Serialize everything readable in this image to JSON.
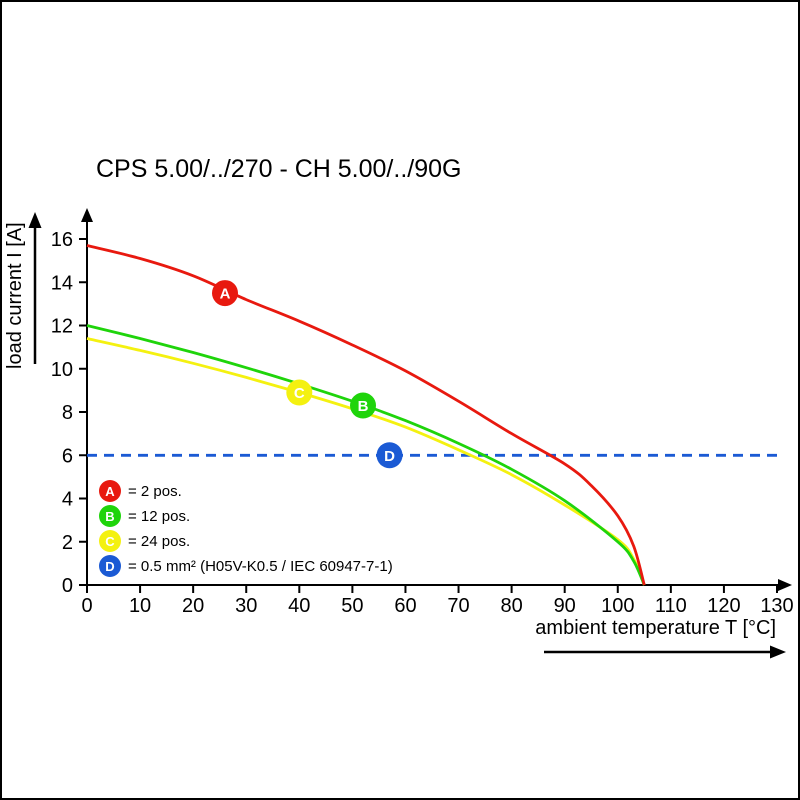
{
  "chart_data": {
    "type": "line",
    "title": "CPS 5.00/../270 - CH 5.00/../90G",
    "xlabel": "ambient temperature T [°C]",
    "ylabel": "load current I [A]",
    "xlim": [
      0,
      130
    ],
    "ylim": [
      0,
      17
    ],
    "xticks": [
      0,
      10,
      20,
      30,
      40,
      50,
      60,
      70,
      80,
      90,
      100,
      110,
      120,
      130
    ],
    "yticks": [
      0,
      2,
      4,
      6,
      8,
      10,
      12,
      14,
      16
    ],
    "grid": false,
    "legend_position": "bottom-left-inside",
    "series": [
      {
        "name": "A",
        "label": "= 2 pos.",
        "color": "#e8190f",
        "style": "solid",
        "marker": {
          "x": 26,
          "y": 13.5
        },
        "points": [
          [
            0,
            15.7
          ],
          [
            10,
            15.1
          ],
          [
            20,
            14.3
          ],
          [
            30,
            13.2
          ],
          [
            40,
            12.2
          ],
          [
            50,
            11.1
          ],
          [
            60,
            9.9
          ],
          [
            70,
            8.5
          ],
          [
            80,
            7.0
          ],
          [
            90,
            5.6
          ],
          [
            95,
            4.6
          ],
          [
            100,
            3.2
          ],
          [
            103,
            1.8
          ],
          [
            105,
            0
          ]
        ]
      },
      {
        "name": "B",
        "label": "= 12 pos.",
        "color": "#1fd40b",
        "style": "solid",
        "marker": {
          "x": 52,
          "y": 8.3
        },
        "points": [
          [
            0,
            12.0
          ],
          [
            10,
            11.4
          ],
          [
            20,
            10.75
          ],
          [
            30,
            10.05
          ],
          [
            40,
            9.3
          ],
          [
            50,
            8.5
          ],
          [
            60,
            7.6
          ],
          [
            70,
            6.55
          ],
          [
            80,
            5.35
          ],
          [
            90,
            3.9
          ],
          [
            100,
            2.0
          ],
          [
            103,
            1.1
          ],
          [
            105,
            0
          ]
        ]
      },
      {
        "name": "C",
        "label": "= 24 pos.",
        "color": "#f4f110",
        "style": "solid",
        "marker": {
          "x": 40,
          "y": 8.9
        },
        "points": [
          [
            0,
            11.4
          ],
          [
            10,
            10.85
          ],
          [
            20,
            10.25
          ],
          [
            30,
            9.6
          ],
          [
            40,
            8.9
          ],
          [
            50,
            8.15
          ],
          [
            60,
            7.3
          ],
          [
            70,
            6.25
          ],
          [
            80,
            5.1
          ],
          [
            90,
            3.7
          ],
          [
            100,
            2.1
          ],
          [
            103,
            1.2
          ],
          [
            105,
            0
          ]
        ]
      },
      {
        "name": "D",
        "label": "= 0.5 mm² (H05V-K0.5 / IEC 60947-7-1)",
        "color": "#1b5ad4",
        "style": "dashed",
        "marker": {
          "x": 57,
          "y": 6.0
        },
        "points": [
          [
            0,
            6
          ],
          [
            130,
            6
          ]
        ]
      }
    ]
  }
}
